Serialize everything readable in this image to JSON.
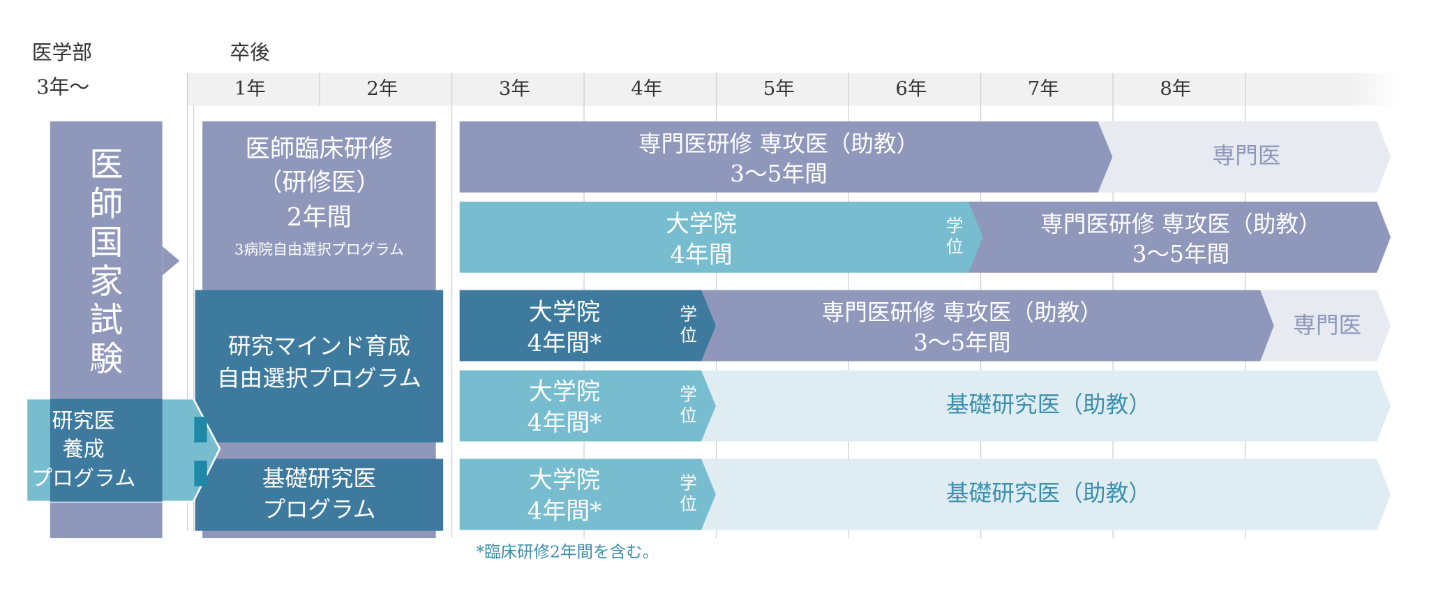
{
  "header": {
    "med_label": "医学部",
    "med_year": "3年〜",
    "after_grad": "卒後",
    "years": [
      "1年",
      "2年",
      "3年",
      "4年",
      "5年",
      "6年",
      "7年",
      "8年"
    ]
  },
  "exam": {
    "chars": [
      "医",
      "師",
      "国",
      "家",
      "試",
      "験"
    ]
  },
  "research_training": {
    "lines": [
      "研究医",
      "養成",
      "プログラム"
    ]
  },
  "clinical_training": {
    "lines": [
      "医師臨床研修",
      "（研修医）",
      "2年間"
    ],
    "note": "3病院自由選択プログラム"
  },
  "research_mind": {
    "lines": [
      "研究マインド育成",
      "自由選択プログラム"
    ]
  },
  "basic_program": {
    "lines": [
      "基礎研究医",
      "プログラム"
    ]
  },
  "row1": {
    "lines": [
      "専門医研修 専攻医（助教）",
      "3〜5年間"
    ],
    "end": "専門医"
  },
  "row2": {
    "grad": [
      "大学院",
      "4年間"
    ],
    "degree": [
      "学",
      "位"
    ],
    "specialist": [
      "専門医研修 専攻医（助教）",
      "3〜5年間"
    ]
  },
  "row3": {
    "grad": [
      "大学院",
      "4年間*"
    ],
    "degree": [
      "学",
      "位"
    ],
    "specialist": [
      "専門医研修 専攻医（助教）",
      "3〜5年間"
    ],
    "end": "専門医"
  },
  "row4": {
    "grad": [
      "大学院",
      "4年間*"
    ],
    "degree": [
      "学",
      "位"
    ],
    "label": "基礎研究医（助教）"
  },
  "row5": {
    "grad": [
      "大学院",
      "4年間*"
    ],
    "degree": [
      "学",
      "位"
    ],
    "label": "基礎研究医（助教）"
  },
  "footnote": "*臨床研修2年間を含む。",
  "colors": {
    "lavender": "#8f98bb",
    "lavender_light": "#e8eaf2",
    "teal": "#78bdcf",
    "teal_dark": "#3d7a9d",
    "teal_pale": "#dfedf3",
    "header_gray": "#f1f1f1"
  }
}
